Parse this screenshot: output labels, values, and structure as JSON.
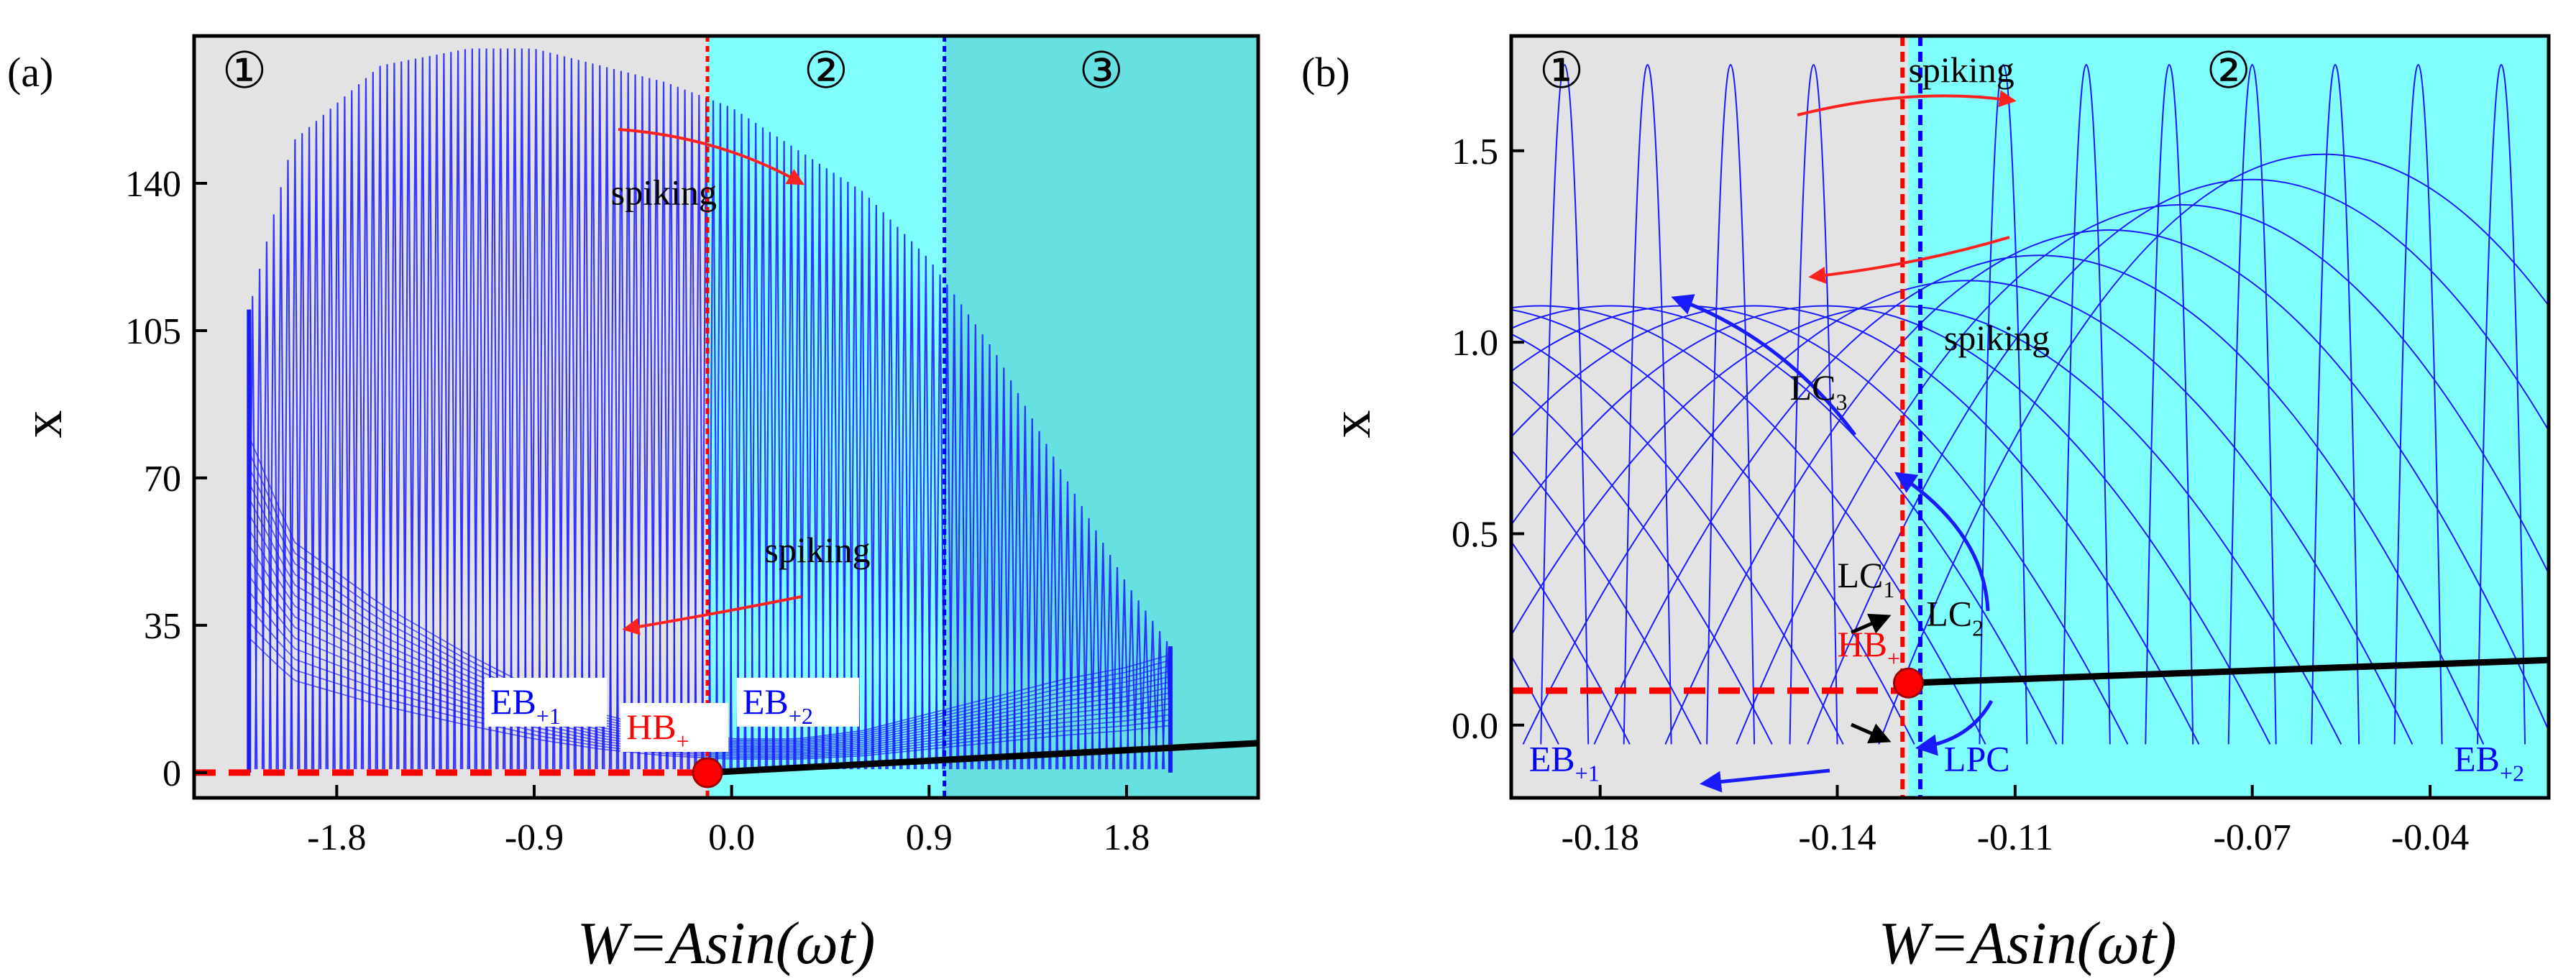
{
  "chart_data": [
    {
      "panel": "(a)",
      "type": "line",
      "xlabel": "W=Asin(ωt)",
      "ylabel": "x",
      "xlim": [
        -2.45,
        2.4
      ],
      "ylim": [
        -6,
        175
      ],
      "xticks": [
        "-1.8",
        "-0.9",
        "0.0",
        "0.9",
        "1.8"
      ],
      "xtick_values": [
        -1.8,
        -0.9,
        0.0,
        0.9,
        1.8
      ],
      "yticks": [
        "0",
        "35",
        "70",
        "105",
        "140"
      ],
      "ytick_values": [
        0,
        35,
        70,
        105,
        140
      ],
      "regions": [
        {
          "label": "①",
          "from": -2.45,
          "to": -0.11,
          "color": "#e3e3e3"
        },
        {
          "label": "②",
          "from": -0.11,
          "to": 0.97,
          "color": "#80ffff"
        },
        {
          "label": "③",
          "from": 0.97,
          "to": 2.4,
          "color": "#66e0e0"
        }
      ],
      "vlines": [
        {
          "x": -0.11,
          "color": "#ff0000"
        },
        {
          "x": 0.97,
          "color": "#0000ff"
        }
      ],
      "spiking_envelope": {
        "x": [
          -2.2,
          -2.0,
          -1.6,
          -1.2,
          -0.9,
          -0.6,
          -0.3,
          0.0,
          0.3,
          0.6,
          0.9,
          1.2,
          1.5,
          1.8,
          2.0
        ],
        "top": [
          110,
          150,
          168,
          172,
          172,
          168,
          164,
          158,
          148,
          138,
          122,
          100,
          72,
          45,
          30
        ],
        "bottom": [
          80,
          55,
          40,
          28,
          20,
          14,
          10,
          8,
          8,
          10,
          14,
          18,
          22,
          25,
          28
        ]
      },
      "series": [
        {
          "name": "EB+1",
          "style": "dashed",
          "color": "#ff0000",
          "x": [
            -2.45,
            -0.11
          ],
          "y": [
            0,
            0
          ]
        },
        {
          "name": "EB+2",
          "style": "solid",
          "color": "#000000",
          "x": [
            -0.11,
            2.4
          ],
          "y": [
            0,
            7
          ]
        }
      ],
      "points": [
        {
          "name": "HB+",
          "x": -0.11,
          "y": 0
        }
      ],
      "annotations": [
        {
          "text": "spiking",
          "x": -0.55,
          "y": 135,
          "color": "#000000"
        },
        {
          "text": "spiking",
          "x": 0.15,
          "y": 50,
          "color": "#000000"
        },
        {
          "text": "EB",
          "sub": "+1",
          "x": -1.1,
          "y": 14,
          "color": "#0000ff"
        },
        {
          "text": "HB",
          "sub": "+",
          "x": -0.48,
          "y": 8,
          "color": "#ff0000"
        },
        {
          "text": "EB",
          "sub": "+2",
          "x": 0.05,
          "y": 14,
          "color": "#0000ff"
        }
      ]
    },
    {
      "panel": "(b)",
      "type": "line",
      "xlabel": "W=Asin(ωt)",
      "ylabel": "x",
      "xlim": [
        -0.195,
        -0.02
      ],
      "ylim": [
        -0.19,
        1.8
      ],
      "xticks": [
        "-0.18",
        "-0.14",
        "-0.11",
        "-0.07",
        "-0.04"
      ],
      "xtick_values": [
        -0.18,
        -0.14,
        -0.11,
        -0.07,
        -0.04
      ],
      "yticks": [
        "0.0",
        "0.5",
        "1.0",
        "1.5"
      ],
      "ytick_values": [
        0.0,
        0.5,
        1.0,
        1.5
      ],
      "regions": [
        {
          "label": "①",
          "from": -0.195,
          "to": -0.128,
          "color": "#e3e3e3"
        },
        {
          "label": "②",
          "from": -0.128,
          "to": -0.02,
          "color": "#80ffff"
        }
      ],
      "vlines": [
        {
          "x": -0.129,
          "color": "#ff0000"
        },
        {
          "x": -0.126,
          "color": "#0000ff"
        }
      ],
      "series": [
        {
          "name": "EB+1",
          "style": "dashed",
          "color": "#ff0000",
          "x": [
            -0.195,
            -0.128
          ],
          "y": [
            0.09,
            0.09
          ]
        },
        {
          "name": "EB+2",
          "style": "solid",
          "color": "#000000",
          "x": [
            -0.128,
            -0.02
          ],
          "y": [
            0.11,
            0.17
          ]
        }
      ],
      "points": [
        {
          "name": "HB+",
          "x": -0.128,
          "y": 0.11
        }
      ],
      "annotations": [
        {
          "text": "spiking",
          "x": -0.128,
          "y": 1.68,
          "color": "#000000"
        },
        {
          "text": "spiking",
          "x": -0.122,
          "y": 0.98,
          "color": "#000000"
        },
        {
          "text": "LC",
          "sub": "3",
          "x": -0.148,
          "y": 0.85,
          "color": "#000000"
        },
        {
          "text": "LC",
          "sub": "1",
          "x": -0.14,
          "y": 0.36,
          "color": "#000000"
        },
        {
          "text": "LC",
          "sub": "2",
          "x": -0.125,
          "y": 0.26,
          "color": "#000000"
        },
        {
          "text": "HB",
          "sub": "+",
          "x": -0.14,
          "y": 0.18,
          "color": "#ff0000"
        },
        {
          "text": "LPC",
          "x": -0.122,
          "y": -0.12,
          "color": "#0000ff"
        },
        {
          "text": "EB",
          "sub": "+1",
          "x": -0.192,
          "y": -0.12,
          "color": "#0000ff"
        },
        {
          "text": "EB",
          "sub": "+2",
          "x": -0.036,
          "y": -0.12,
          "color": "#0000ff"
        }
      ]
    }
  ]
}
